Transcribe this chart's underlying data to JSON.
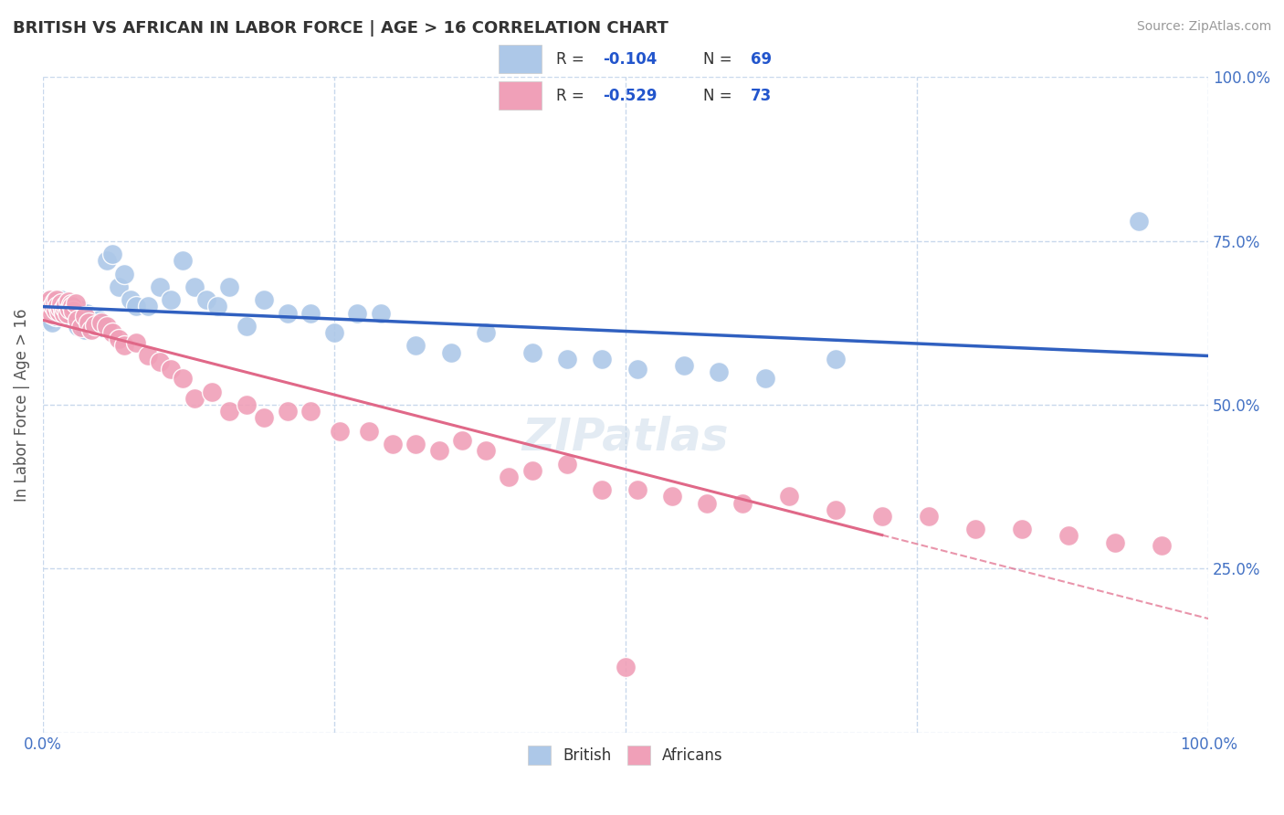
{
  "title": "BRITISH VS AFRICAN IN LABOR FORCE | AGE > 16 CORRELATION CHART",
  "source": "Source: ZipAtlas.com",
  "ylabel": "In Labor Force | Age > 16",
  "xlim": [
    0.0,
    1.0
  ],
  "ylim": [
    0.0,
    1.0
  ],
  "x_ticks": [
    0.0,
    0.25,
    0.5,
    0.75,
    1.0
  ],
  "y_ticks": [
    0.0,
    0.25,
    0.5,
    0.75,
    1.0
  ],
  "x_tick_labels_show": [
    "0.0%",
    "100.0%"
  ],
  "y_tick_labels_show": [
    "25.0%",
    "50.0%",
    "75.0%",
    "100.0%"
  ],
  "british_R": -0.104,
  "british_N": 69,
  "african_R": -0.529,
  "african_N": 73,
  "british_color": "#adc8e8",
  "african_color": "#f0a0b8",
  "british_line_color": "#3060c0",
  "african_line_color": "#e06888",
  "grid_color": "#c8d8ec",
  "background_color": "#ffffff",
  "british_x": [
    0.002,
    0.004,
    0.005,
    0.006,
    0.007,
    0.008,
    0.009,
    0.01,
    0.011,
    0.012,
    0.013,
    0.014,
    0.015,
    0.016,
    0.017,
    0.018,
    0.019,
    0.02,
    0.021,
    0.022,
    0.023,
    0.024,
    0.025,
    0.026,
    0.027,
    0.028,
    0.03,
    0.032,
    0.034,
    0.036,
    0.038,
    0.04,
    0.042,
    0.045,
    0.048,
    0.05,
    0.055,
    0.06,
    0.065,
    0.07,
    0.075,
    0.08,
    0.09,
    0.1,
    0.11,
    0.12,
    0.13,
    0.14,
    0.15,
    0.16,
    0.175,
    0.19,
    0.21,
    0.23,
    0.25,
    0.27,
    0.29,
    0.32,
    0.35,
    0.38,
    0.42,
    0.45,
    0.48,
    0.51,
    0.55,
    0.58,
    0.62,
    0.68,
    0.94
  ],
  "british_y": [
    0.64,
    0.65,
    0.63,
    0.66,
    0.645,
    0.625,
    0.655,
    0.66,
    0.635,
    0.65,
    0.645,
    0.64,
    0.635,
    0.66,
    0.65,
    0.638,
    0.642,
    0.648,
    0.635,
    0.655,
    0.642,
    0.65,
    0.645,
    0.638,
    0.652,
    0.648,
    0.62,
    0.645,
    0.63,
    0.615,
    0.64,
    0.635,
    0.62,
    0.625,
    0.63,
    0.618,
    0.72,
    0.73,
    0.68,
    0.7,
    0.66,
    0.65,
    0.65,
    0.68,
    0.66,
    0.72,
    0.68,
    0.66,
    0.65,
    0.68,
    0.62,
    0.66,
    0.64,
    0.64,
    0.61,
    0.64,
    0.64,
    0.59,
    0.58,
    0.61,
    0.58,
    0.57,
    0.57,
    0.555,
    0.56,
    0.55,
    0.54,
    0.57,
    0.78
  ],
  "african_x": [
    0.002,
    0.004,
    0.005,
    0.006,
    0.007,
    0.008,
    0.009,
    0.01,
    0.011,
    0.012,
    0.013,
    0.014,
    0.015,
    0.016,
    0.017,
    0.018,
    0.019,
    0.02,
    0.021,
    0.022,
    0.023,
    0.024,
    0.025,
    0.026,
    0.028,
    0.03,
    0.033,
    0.036,
    0.039,
    0.042,
    0.045,
    0.05,
    0.055,
    0.06,
    0.065,
    0.07,
    0.08,
    0.09,
    0.1,
    0.11,
    0.12,
    0.13,
    0.145,
    0.16,
    0.175,
    0.19,
    0.21,
    0.23,
    0.255,
    0.28,
    0.3,
    0.32,
    0.34,
    0.36,
    0.38,
    0.4,
    0.42,
    0.45,
    0.48,
    0.51,
    0.54,
    0.57,
    0.6,
    0.64,
    0.68,
    0.72,
    0.76,
    0.8,
    0.84,
    0.88,
    0.92,
    0.96,
    0.5
  ],
  "african_y": [
    0.645,
    0.655,
    0.65,
    0.66,
    0.648,
    0.638,
    0.652,
    0.658,
    0.645,
    0.66,
    0.65,
    0.642,
    0.648,
    0.655,
    0.645,
    0.64,
    0.648,
    0.652,
    0.64,
    0.658,
    0.646,
    0.654,
    0.65,
    0.644,
    0.655,
    0.63,
    0.618,
    0.635,
    0.625,
    0.615,
    0.622,
    0.625,
    0.62,
    0.61,
    0.6,
    0.59,
    0.595,
    0.575,
    0.565,
    0.555,
    0.54,
    0.51,
    0.52,
    0.49,
    0.5,
    0.48,
    0.49,
    0.49,
    0.46,
    0.46,
    0.44,
    0.44,
    0.43,
    0.445,
    0.43,
    0.39,
    0.4,
    0.41,
    0.37,
    0.37,
    0.36,
    0.35,
    0.35,
    0.36,
    0.34,
    0.33,
    0.33,
    0.31,
    0.31,
    0.3,
    0.29,
    0.285,
    0.1
  ],
  "african_line_solid_end": 0.72,
  "african_line_dashed_start": 0.72
}
